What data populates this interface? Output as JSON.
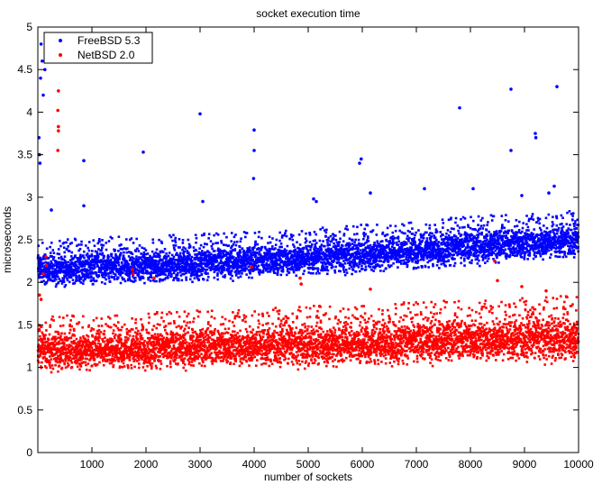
{
  "chart_data": {
    "type": "scatter",
    "title": "socket execution time",
    "xlabel": "number of sockets",
    "ylabel": "microseconds",
    "xlim": [
      0,
      10000
    ],
    "ylim": [
      0,
      5
    ],
    "xticks": [
      1000,
      2000,
      3000,
      4000,
      5000,
      6000,
      7000,
      8000,
      9000,
      10000
    ],
    "yticks": [
      0,
      0.5,
      1,
      1.5,
      2,
      2.5,
      3,
      3.5,
      4,
      4.5,
      5
    ],
    "xtick_labels": [
      "1000",
      "2000",
      "3000",
      "4000",
      "5000",
      "6000",
      "7000",
      "8000",
      "9000",
      "10000"
    ],
    "ytick_labels": [
      "0",
      "0.5",
      "1",
      "1.5",
      "2",
      "2.5",
      "3",
      "3.5",
      "4",
      "4.5",
      "5"
    ],
    "grid": false,
    "legend_position": "top-left",
    "series": [
      {
        "name": "FreeBSD 5.3",
        "color": "#0000ff",
        "point_count": 10000,
        "trend": [
          [
            0,
            2.15
          ],
          [
            2000,
            2.2
          ],
          [
            4000,
            2.25
          ],
          [
            6000,
            2.33
          ],
          [
            8000,
            2.42
          ],
          [
            10000,
            2.5
          ]
        ],
        "band_low": [
          [
            0,
            1.95
          ],
          [
            2000,
            2.0
          ],
          [
            4000,
            2.05
          ],
          [
            6000,
            2.12
          ],
          [
            8000,
            2.2
          ],
          [
            10000,
            2.3
          ]
        ],
        "band_high": [
          [
            0,
            2.5
          ],
          [
            2000,
            2.55
          ],
          [
            4000,
            2.6
          ],
          [
            6000,
            2.68
          ],
          [
            8000,
            2.78
          ],
          [
            10000,
            2.85
          ]
        ],
        "outliers": [
          [
            20,
            3.7
          ],
          [
            30,
            3.5
          ],
          [
            40,
            3.4
          ],
          [
            50,
            4.4
          ],
          [
            60,
            4.8
          ],
          [
            80,
            4.6
          ],
          [
            100,
            4.2
          ],
          [
            130,
            4.5
          ],
          [
            850,
            3.43
          ],
          [
            1950,
            3.53
          ],
          [
            3000,
            3.98
          ],
          [
            4000,
            3.79
          ],
          [
            4000,
            3.55
          ],
          [
            3990,
            3.22
          ],
          [
            5950,
            3.4
          ],
          [
            5980,
            3.45
          ],
          [
            7800,
            4.05
          ],
          [
            8750,
            4.27
          ],
          [
            8750,
            3.55
          ],
          [
            9200,
            3.75
          ],
          [
            9210,
            3.7
          ],
          [
            9600,
            4.3
          ],
          [
            850,
            2.9
          ],
          [
            3050,
            2.95
          ],
          [
            5100,
            2.98
          ],
          [
            5150,
            2.95
          ],
          [
            7150,
            3.1
          ],
          [
            8050,
            3.1
          ],
          [
            8950,
            3.02
          ],
          [
            9450,
            3.05
          ],
          [
            9550,
            3.13
          ],
          [
            250,
            2.85
          ],
          [
            6150,
            3.05
          ]
        ]
      },
      {
        "name": "NetBSD 2.0",
        "color": "#ff0000",
        "point_count": 10000,
        "trend": [
          [
            0,
            1.2
          ],
          [
            2000,
            1.22
          ],
          [
            4000,
            1.25
          ],
          [
            6000,
            1.28
          ],
          [
            8000,
            1.32
          ],
          [
            10000,
            1.35
          ]
        ],
        "band_low": [
          [
            0,
            0.98
          ],
          [
            2000,
            1.0
          ],
          [
            4000,
            1.02
          ],
          [
            6000,
            1.05
          ],
          [
            8000,
            1.08
          ],
          [
            10000,
            1.1
          ]
        ],
        "band_high": [
          [
            0,
            1.6
          ],
          [
            2000,
            1.65
          ],
          [
            4000,
            1.7
          ],
          [
            6000,
            1.75
          ],
          [
            8000,
            1.8
          ],
          [
            10000,
            1.85
          ]
        ],
        "outliers": [
          [
            380,
            4.25
          ],
          [
            370,
            4.02
          ],
          [
            380,
            3.83
          ],
          [
            380,
            3.78
          ],
          [
            370,
            3.55
          ],
          [
            150,
            2.3
          ],
          [
            160,
            2.2
          ],
          [
            100,
            2.1
          ],
          [
            1750,
            2.15
          ],
          [
            1760,
            2.1
          ],
          [
            2150,
            2.05
          ],
          [
            3950,
            2.18
          ],
          [
            4850,
            2.05
          ],
          [
            4870,
            1.98
          ],
          [
            6150,
            1.92
          ],
          [
            8450,
            2.25
          ],
          [
            8500,
            2.02
          ],
          [
            8950,
            1.95
          ],
          [
            9400,
            1.9
          ],
          [
            30,
            1.85
          ],
          [
            60,
            1.8
          ]
        ]
      }
    ]
  }
}
